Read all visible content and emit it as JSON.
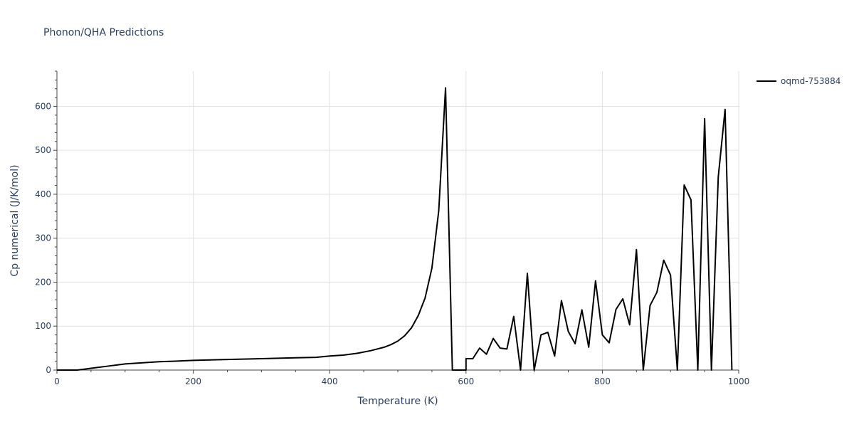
{
  "chart_data": {
    "type": "line",
    "title": "Phonon/QHA Predictions",
    "xlabel": "Temperature (K)",
    "ylabel": "Cp numerical (J/K/mol)",
    "xlim": [
      0,
      1000
    ],
    "ylim": [
      0,
      680
    ],
    "xticks": [
      0,
      200,
      400,
      600,
      800,
      1000
    ],
    "yticks": [
      0,
      100,
      200,
      300,
      400,
      500,
      600
    ],
    "grid": true,
    "legend_position": "top-right",
    "series": [
      {
        "name": "oqmd-753884",
        "color": "#000000",
        "x": [
          0,
          10,
          20,
          30,
          40,
          50,
          60,
          70,
          80,
          90,
          100,
          110,
          130,
          150,
          170,
          200,
          250,
          300,
          350,
          380,
          400,
          420,
          440,
          460,
          480,
          490,
          500,
          510,
          520,
          530,
          540,
          550,
          560,
          570,
          580,
          590,
          600,
          600,
          610,
          620,
          630,
          640,
          650,
          660,
          670,
          680,
          690,
          700,
          710,
          720,
          730,
          740,
          750,
          760,
          770,
          780,
          790,
          800,
          810,
          820,
          830,
          840,
          850,
          860,
          870,
          880,
          890,
          900,
          910,
          920,
          930,
          940,
          950,
          960,
          970,
          980,
          990
        ],
        "y": [
          0,
          0,
          0,
          0,
          2,
          4,
          6,
          8,
          10,
          12,
          14,
          15,
          17,
          19,
          20,
          22,
          24,
          26,
          28,
          29,
          32,
          34,
          38,
          44,
          52,
          58,
          66,
          78,
          96,
          124,
          164,
          232,
          362,
          642,
          0,
          0,
          0,
          26,
          26,
          50,
          36,
          72,
          50,
          48,
          122,
          0,
          220,
          0,
          80,
          86,
          32,
          158,
          88,
          60,
          137,
          52,
          203,
          80,
          62,
          138,
          162,
          103,
          274,
          0,
          147,
          177,
          250,
          216,
          0,
          421,
          387,
          0,
          572,
          0,
          439,
          593,
          0
        ]
      }
    ]
  }
}
